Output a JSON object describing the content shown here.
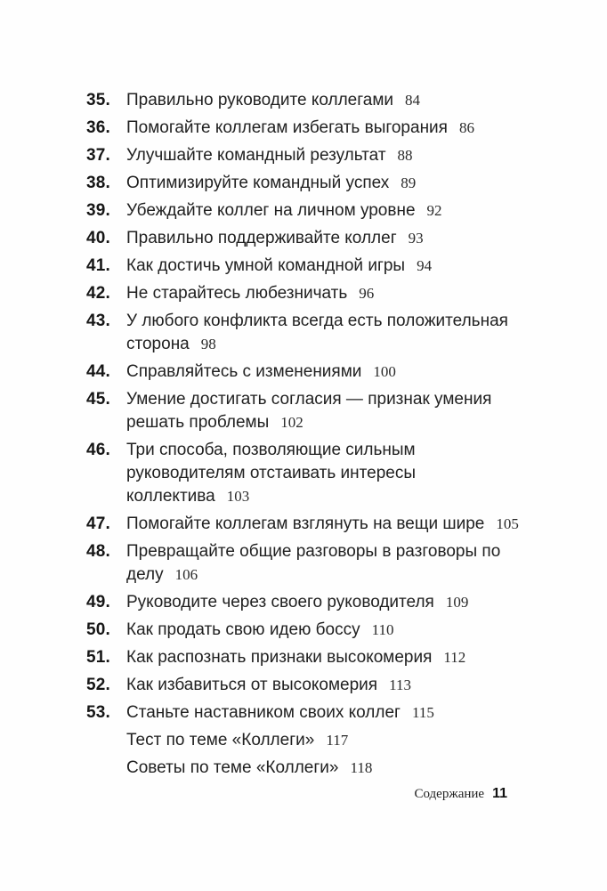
{
  "toc": {
    "items": [
      {
        "num": "35.",
        "title": "Правильно руководите коллегами",
        "page": "84"
      },
      {
        "num": "36.",
        "title": "Помогайте коллегам избегать выгорания",
        "page": "86"
      },
      {
        "num": "37.",
        "title": "Улучшайте командный результат",
        "page": "88"
      },
      {
        "num": "38.",
        "title": "Оптимизируйте командный успех",
        "page": "89"
      },
      {
        "num": "39.",
        "title": "Убеждайте коллег на личном уровне",
        "page": "92"
      },
      {
        "num": "40.",
        "title": "Правильно поддерживайте коллег",
        "page": "93"
      },
      {
        "num": "41.",
        "title": "Как достичь умной командной игры",
        "page": "94"
      },
      {
        "num": "42.",
        "title": "Не старайтесь любезничать",
        "page": "96"
      },
      {
        "num": "43.",
        "title": "У любого конфликта всегда есть положительная сторона",
        "page": "98"
      },
      {
        "num": "44.",
        "title": "Справляйтесь с изменениями",
        "page": "100"
      },
      {
        "num": "45.",
        "title": "Умение достигать согласия — признак умения решать проблемы",
        "page": "102"
      },
      {
        "num": "46.",
        "title": "Три способа, позволяющие сильным руководителям отстаивать интересы коллектива",
        "page": "103"
      },
      {
        "num": "47.",
        "title": "Помогайте коллегам взглянуть на вещи шире",
        "page": "105"
      },
      {
        "num": "48.",
        "title": "Превращайте общие разговоры в разговоры по делу",
        "page": "106"
      },
      {
        "num": "49.",
        "title": "Руководите через своего руководителя",
        "page": "109"
      },
      {
        "num": "50.",
        "title": "Как продать свою идею боссу",
        "page": "110"
      },
      {
        "num": "51.",
        "title": "Как распознать признаки высокомерия",
        "page": "112"
      },
      {
        "num": "52.",
        "title": "Как избавиться от высокомерия",
        "page": "113"
      },
      {
        "num": "53.",
        "title": "Станьте наставником своих коллег",
        "page": "115"
      },
      {
        "num": "",
        "title": "Тест по теме «Коллеги»",
        "page": "117"
      },
      {
        "num": "",
        "title": "Советы по теме «Коллеги»",
        "page": "118"
      }
    ]
  },
  "footer": {
    "label": "Содержание",
    "page_number": "11"
  }
}
